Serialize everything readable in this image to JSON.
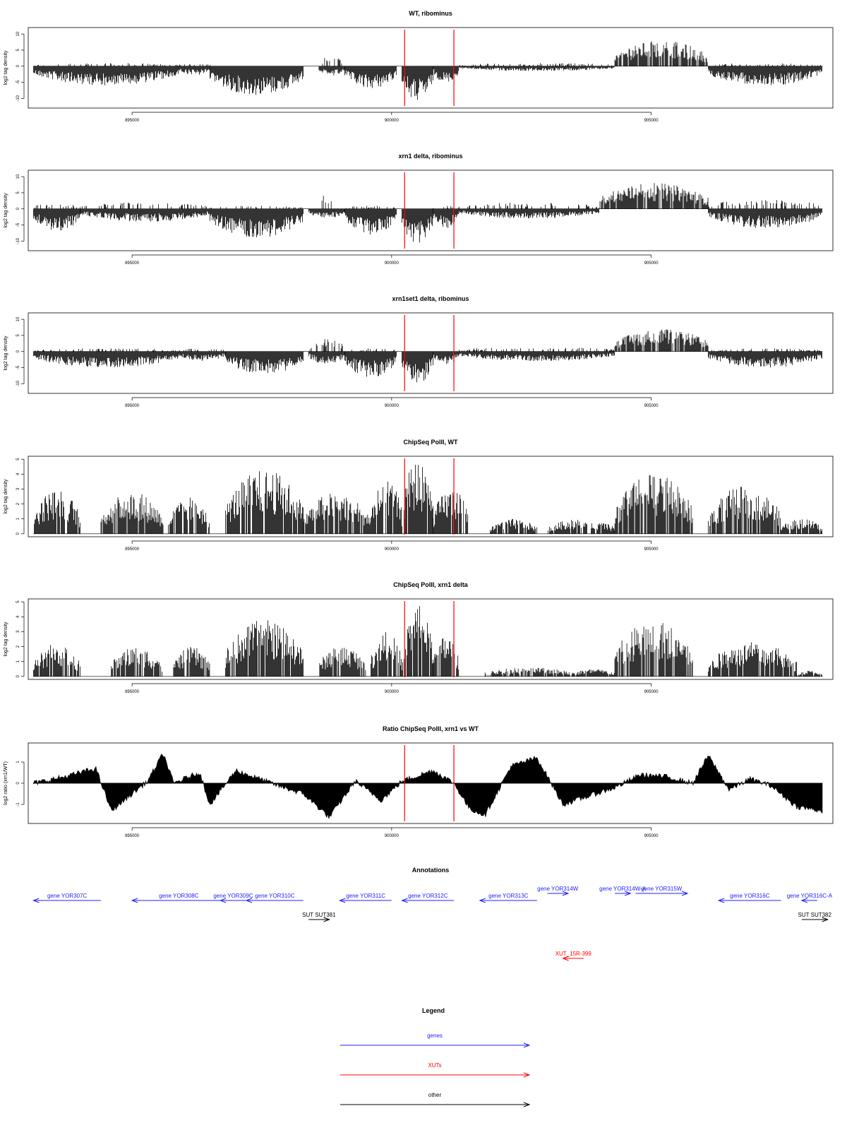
{
  "xaxis": {
    "range": [
      893000,
      908500
    ],
    "ticks": [
      895000,
      900000,
      905000
    ],
    "tick_labels": [
      "895000",
      "900000",
      "905000"
    ]
  },
  "markers": [
    900250,
    901200
  ],
  "colors": {
    "gene": "#2020ff",
    "xut": "#ff0000",
    "other": "#000000",
    "marker": "#ff0000",
    "data": "#000000"
  },
  "chart_data": [
    {
      "type": "bar",
      "title": "WT, ribominus",
      "ylabel": "log2 tag density",
      "ylim": [
        -13,
        12
      ],
      "yticks": [
        10,
        5,
        0,
        -5,
        -10
      ],
      "ytick_labels": [
        "10",
        "5",
        "0",
        "-5",
        "-10"
      ],
      "segments": [
        {
          "x": [
            893100,
            895900
          ],
          "values": [
            -6,
            1
          ]
        },
        {
          "x": [
            895900,
            896500
          ],
          "values": [
            -3,
            1
          ]
        },
        {
          "x": [
            896500,
            898300
          ],
          "values": [
            -9,
            0
          ]
        },
        {
          "x": [
            898600,
            899100
          ],
          "values": [
            -3,
            3.5
          ]
        },
        {
          "x": [
            899100,
            900100
          ],
          "values": [
            -7,
            0
          ]
        },
        {
          "x": [
            900200,
            900800
          ],
          "values": [
            -11,
            0
          ]
        },
        {
          "x": [
            900800,
            901300
          ],
          "values": [
            -5,
            0
          ]
        },
        {
          "x": [
            901300,
            904300
          ],
          "values": [
            -1.5,
            1
          ]
        },
        {
          "x": [
            904300,
            906100
          ],
          "values": [
            0,
            8
          ]
        },
        {
          "x": [
            906100,
            908300
          ],
          "values": [
            -6,
            1
          ]
        }
      ]
    },
    {
      "type": "bar",
      "title": "xrn1 delta, ribominus",
      "ylabel": "log2 tag density",
      "ylim": [
        -13,
        12
      ],
      "yticks": [
        10,
        5,
        0,
        -5,
        -10
      ],
      "ytick_labels": [
        "10",
        "5",
        "0",
        "-5",
        "-10"
      ],
      "segments": [
        {
          "x": [
            893100,
            894000
          ],
          "values": [
            -7,
            2
          ]
        },
        {
          "x": [
            894000,
            896500
          ],
          "values": [
            -4,
            2
          ]
        },
        {
          "x": [
            896500,
            898300
          ],
          "values": [
            -9,
            1
          ]
        },
        {
          "x": [
            898400,
            899100
          ],
          "values": [
            -3,
            4.5
          ]
        },
        {
          "x": [
            899100,
            900100
          ],
          "values": [
            -8,
            1
          ]
        },
        {
          "x": [
            900200,
            900800
          ],
          "values": [
            -11,
            0
          ]
        },
        {
          "x": [
            900800,
            901300
          ],
          "values": [
            -6,
            1
          ]
        },
        {
          "x": [
            901300,
            904000
          ],
          "values": [
            -3,
            2
          ]
        },
        {
          "x": [
            904000,
            906100
          ],
          "values": [
            0,
            8
          ]
        },
        {
          "x": [
            906100,
            908300
          ],
          "values": [
            -6,
            3
          ]
        }
      ]
    },
    {
      "type": "bar",
      "title": "xrn1set1 delta, ribominus",
      "ylabel": "log2 tag density",
      "ylim": [
        -13,
        12
      ],
      "yticks": [
        10,
        5,
        0,
        -5,
        -10
      ],
      "ytick_labels": [
        "10",
        "5",
        "0",
        "-5",
        "-10"
      ],
      "segments": [
        {
          "x": [
            893100,
            895900
          ],
          "values": [
            -5,
            1
          ]
        },
        {
          "x": [
            895900,
            896800
          ],
          "values": [
            -3,
            1
          ]
        },
        {
          "x": [
            896800,
            898300
          ],
          "values": [
            -7,
            0
          ]
        },
        {
          "x": [
            898400,
            899100
          ],
          "values": [
            -4,
            4
          ]
        },
        {
          "x": [
            899100,
            900100
          ],
          "values": [
            -8,
            1
          ]
        },
        {
          "x": [
            900200,
            900800
          ],
          "values": [
            -10,
            0
          ]
        },
        {
          "x": [
            900800,
            901300
          ],
          "values": [
            -4,
            0
          ]
        },
        {
          "x": [
            901300,
            904300
          ],
          "values": [
            -3,
            1.5
          ]
        },
        {
          "x": [
            904300,
            906100
          ],
          "values": [
            0,
            7
          ]
        },
        {
          "x": [
            906100,
            908300
          ],
          "values": [
            -5,
            1
          ]
        }
      ]
    },
    {
      "type": "bar",
      "title": "ChipSeq PolII, WT",
      "ylabel": "log2 tag density",
      "ylim": [
        -0.2,
        5.2
      ],
      "yticks": [
        0,
        1,
        2,
        3,
        4,
        5
      ],
      "ytick_labels": [
        "0",
        "1",
        "2",
        "3",
        "4",
        "5"
      ],
      "segments": [
        {
          "x": [
            893100,
            894000
          ],
          "values": [
            0,
            3
          ]
        },
        {
          "x": [
            894400,
            895600
          ],
          "values": [
            0,
            2.8
          ]
        },
        {
          "x": [
            895700,
            896500
          ],
          "values": [
            0,
            2.5
          ]
        },
        {
          "x": [
            896800,
            898300
          ],
          "values": [
            0,
            4.3
          ]
        },
        {
          "x": [
            898300,
            899600
          ],
          "values": [
            0,
            2.8
          ]
        },
        {
          "x": [
            899600,
            900200
          ],
          "values": [
            0,
            3.6
          ]
        },
        {
          "x": [
            900200,
            900800
          ],
          "values": [
            0,
            4.9
          ]
        },
        {
          "x": [
            900800,
            901500
          ],
          "values": [
            0,
            3
          ]
        },
        {
          "x": [
            901900,
            902800
          ],
          "values": [
            0,
            1
          ]
        },
        {
          "x": [
            903000,
            904300
          ],
          "values": [
            0,
            1
          ]
        },
        {
          "x": [
            904300,
            905800
          ],
          "values": [
            0,
            4
          ]
        },
        {
          "x": [
            906100,
            907500
          ],
          "values": [
            0,
            3.2
          ]
        },
        {
          "x": [
            907500,
            908300
          ],
          "values": [
            0,
            1
          ]
        }
      ]
    },
    {
      "type": "bar",
      "title": "ChipSeq PolII, xrn1 delta",
      "ylabel": "log2 tag density",
      "ylim": [
        -0.2,
        5.2
      ],
      "yticks": [
        0,
        1,
        2,
        3,
        4,
        5
      ],
      "ytick_labels": [
        "0",
        "1",
        "2",
        "3",
        "4",
        "5"
      ],
      "segments": [
        {
          "x": [
            893100,
            894000
          ],
          "values": [
            0,
            2.2
          ]
        },
        {
          "x": [
            894600,
            895600
          ],
          "values": [
            0,
            2
          ]
        },
        {
          "x": [
            895800,
            896500
          ],
          "values": [
            0,
            2
          ]
        },
        {
          "x": [
            896800,
            898300
          ],
          "values": [
            0,
            3.8
          ]
        },
        {
          "x": [
            898600,
            899500
          ],
          "values": [
            0,
            2.1
          ]
        },
        {
          "x": [
            899600,
            900200
          ],
          "values": [
            0,
            3
          ]
        },
        {
          "x": [
            900200,
            900800
          ],
          "values": [
            0,
            4.8
          ]
        },
        {
          "x": [
            900800,
            901300
          ],
          "values": [
            0,
            2.8
          ]
        },
        {
          "x": [
            901800,
            903500
          ],
          "values": [
            0,
            0.6
          ]
        },
        {
          "x": [
            903500,
            904300
          ],
          "values": [
            0,
            0.5
          ]
        },
        {
          "x": [
            904300,
            905800
          ],
          "values": [
            0,
            3.8
          ]
        },
        {
          "x": [
            906100,
            907800
          ],
          "values": [
            0,
            2.3
          ]
        },
        {
          "x": [
            907800,
            908300
          ],
          "values": [
            0,
            0.4
          ]
        }
      ]
    },
    {
      "type": "area",
      "title": "Ratio ChipSeq PolII, xrn1 vs WT",
      "ylabel": "log2 ratio (xrn1/WT)",
      "ylim": [
        -1.9,
        1.9
      ],
      "yticks": [
        1,
        0,
        -1
      ],
      "ytick_labels": [
        "1",
        "0",
        "-1"
      ],
      "x": [
        893100,
        893700,
        894300,
        894600,
        895300,
        895600,
        895800,
        896300,
        896500,
        897000,
        897800,
        898300,
        898800,
        899300,
        899800,
        900200,
        900800,
        901200,
        901500,
        901800,
        902300,
        902800,
        903300,
        903800,
        904300,
        904800,
        905300,
        905800,
        906100,
        906500,
        906900,
        907300,
        907800,
        908300
      ],
      "values": [
        0.0,
        0.3,
        0.7,
        -1.3,
        0.1,
        1.4,
        0.0,
        0.5,
        -1.0,
        0.6,
        -0.1,
        -0.5,
        -1.6,
        0.1,
        -0.8,
        0.1,
        0.6,
        0.0,
        -1.2,
        -1.5,
        0.8,
        1.2,
        -1.0,
        -0.6,
        -0.2,
        0.4,
        0.3,
        0.0,
        1.3,
        -0.3,
        0.2,
        -0.1,
        -1.1,
        -1.3
      ]
    }
  ],
  "annotations": {
    "title": "Annotations",
    "items": [
      {
        "label": "gene YOR307C",
        "start": 893100,
        "end": 894400,
        "strand": "-",
        "track": 1,
        "kind": "gene"
      },
      {
        "label": "gene YOR308C",
        "start": 895000,
        "end": 896800,
        "strand": "-",
        "track": 1,
        "kind": "gene"
      },
      {
        "label": "gene YOR309C",
        "start": 896700,
        "end": 897200,
        "strand": "-",
        "track": 1,
        "kind": "gene"
      },
      {
        "label": "gene YOR310C",
        "start": 897200,
        "end": 898300,
        "strand": "-",
        "track": 1,
        "kind": "gene"
      },
      {
        "label": "gene YOR311C",
        "start": 899000,
        "end": 900000,
        "strand": "-",
        "track": 1,
        "kind": "gene"
      },
      {
        "label": "gene YOR312C",
        "start": 900200,
        "end": 901200,
        "strand": "-",
        "track": 1,
        "kind": "gene"
      },
      {
        "label": "gene YOR313C",
        "start": 901700,
        "end": 902800,
        "strand": "-",
        "track": 1,
        "kind": "gene"
      },
      {
        "label": "gene YOR314W",
        "start": 903000,
        "end": 903400,
        "strand": "+",
        "track": 0,
        "kind": "gene"
      },
      {
        "label": "gene YOR314W-A",
        "start": 904300,
        "end": 904600,
        "strand": "+",
        "track": 0,
        "kind": "gene"
      },
      {
        "label": "gene YOR315W",
        "start": 904700,
        "end": 905700,
        "strand": "+",
        "track": 0,
        "kind": "gene"
      },
      {
        "label": "gene YOR316C",
        "start": 906300,
        "end": 907500,
        "strand": "-",
        "track": 1,
        "kind": "gene"
      },
      {
        "label": "gene YOR316C-A",
        "start": 907900,
        "end": 908200,
        "strand": "-",
        "track": 1,
        "kind": "gene"
      },
      {
        "label": "SUT SUT381",
        "start": 898400,
        "end": 898800,
        "strand": "+",
        "track": 2,
        "kind": "other"
      },
      {
        "label": "SUT SUT382",
        "start": 907900,
        "end": 908400,
        "strand": "+",
        "track": 2,
        "kind": "other"
      },
      {
        "label": "XUT_15R-399",
        "start": 903300,
        "end": 903700,
        "strand": "-",
        "track": 4,
        "kind": "xut"
      }
    ]
  },
  "legend": {
    "title": "Legend",
    "items": [
      {
        "label": "genes",
        "kind": "gene"
      },
      {
        "label": "XUTs",
        "kind": "xut"
      },
      {
        "label": "other",
        "kind": "other"
      }
    ]
  }
}
